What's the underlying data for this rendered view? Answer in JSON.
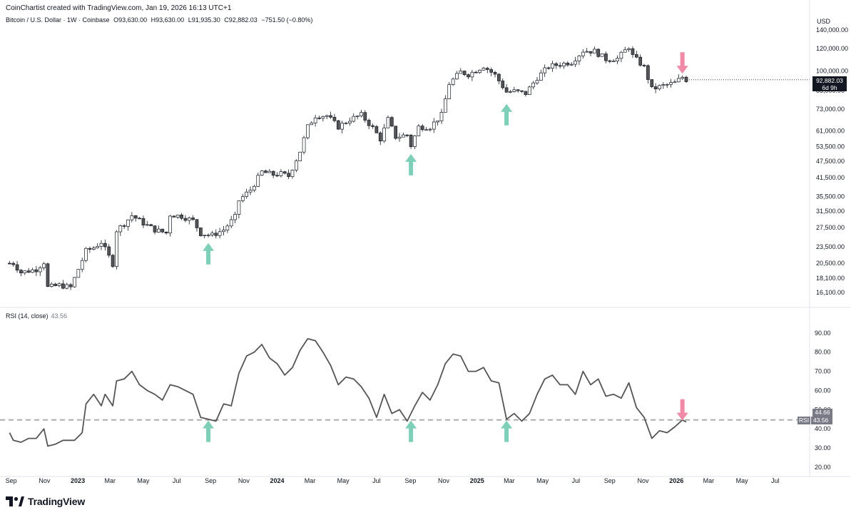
{
  "header": {
    "credit": "CoinChartist created with TradingView.com, Jan 19, 2026 16:13 UTC+1",
    "symbol": "Bitcoin / U.S. Dollar · 1W · Coinbase",
    "open": "O93,630.00",
    "high": "H93,630.00",
    "low": "L91,935.30",
    "close": "C92,882.03",
    "change": "−751.50 (−0.80%)"
  },
  "currency": "USD",
  "price_tag": {
    "price": "92,882.03",
    "countdown": "6d 9h"
  },
  "rsi_panel": {
    "label": "RSI (14, close)",
    "value": "43.56",
    "tag_upper": "44.66",
    "tag_name": "RSI",
    "tag_lower": "43.56"
  },
  "footer": {
    "brand": "TradingView"
  },
  "colors": {
    "up_arrow": "#7ecfb7",
    "down_arrow": "#f08aa6",
    "rsi_line": "#555555",
    "candle_down": "#555555",
    "candle_up": "#ffffff",
    "reference_line": "#9e9e9e"
  },
  "chart_data": [
    {
      "type": "candlestick",
      "title": "",
      "ylabel": "USD",
      "y_scale": "log",
      "ylim": [
        14500,
        145000
      ],
      "y_ticks": [
        {
          "value": 140000,
          "label": "140,000.00"
        },
        {
          "value": 120000,
          "label": "120,000.00"
        },
        {
          "value": 100000,
          "label": "100,000.00"
        },
        {
          "value": 85000,
          "label": "85,000.00"
        },
        {
          "value": 73000,
          "label": "73,000.00"
        },
        {
          "value": 61000,
          "label": "61,000.00"
        },
        {
          "value": 53500,
          "label": "53,500.00"
        },
        {
          "value": 47500,
          "label": "47,500.00"
        },
        {
          "value": 41500,
          "label": "41,500.00"
        },
        {
          "value": 35500,
          "label": "35,500.00"
        },
        {
          "value": 31500,
          "label": "31,500.00"
        },
        {
          "value": 27500,
          "label": "27,500.00"
        },
        {
          "value": 23500,
          "label": "23,500.00"
        },
        {
          "value": 20500,
          "label": "20,500.00"
        },
        {
          "value": 18100,
          "label": "18,100.00"
        },
        {
          "value": 16100,
          "label": "16,100.00"
        }
      ],
      "x_ticks": [
        "Sep",
        "Nov",
        "2023",
        "Mar",
        "May",
        "Jul",
        "Sep",
        "Nov",
        "2024",
        "Mar",
        "May",
        "Jul",
        "Sep",
        "Nov",
        "2025",
        "Mar",
        "May",
        "Jul",
        "Sep",
        "Nov",
        "2026",
        "Mar",
        "May",
        "Jul"
      ],
      "x_tick_bold": [
        false,
        false,
        true,
        false,
        false,
        false,
        false,
        false,
        true,
        false,
        false,
        false,
        false,
        false,
        true,
        false,
        false,
        false,
        false,
        false,
        true,
        false,
        false,
        false
      ],
      "close_path": [
        {
          "x": "2022-09-05",
          "y": 20500
        },
        {
          "x": "2022-09-19",
          "y": 19000
        },
        {
          "x": "2022-10-17",
          "y": 19500
        },
        {
          "x": "2022-10-31",
          "y": 20700
        },
        {
          "x": "2022-11-07",
          "y": 16800
        },
        {
          "x": "2022-11-28",
          "y": 17100
        },
        {
          "x": "2022-12-19",
          "y": 16800
        },
        {
          "x": "2023-01-16",
          "y": 22700
        },
        {
          "x": "2023-01-30",
          "y": 23300
        },
        {
          "x": "2023-02-13",
          "y": 24400
        },
        {
          "x": "2023-03-06",
          "y": 20400
        },
        {
          "x": "2023-03-13",
          "y": 26900
        },
        {
          "x": "2023-03-27",
          "y": 28400
        },
        {
          "x": "2023-04-10",
          "y": 30400
        },
        {
          "x": "2023-05-01",
          "y": 28500
        },
        {
          "x": "2023-05-22",
          "y": 27000
        },
        {
          "x": "2023-06-12",
          "y": 26300
        },
        {
          "x": "2023-06-19",
          "y": 30600
        },
        {
          "x": "2023-07-10",
          "y": 30200
        },
        {
          "x": "2023-07-31",
          "y": 29100
        },
        {
          "x": "2023-08-14",
          "y": 26200
        },
        {
          "x": "2023-09-04",
          "y": 25800
        },
        {
          "x": "2023-09-25",
          "y": 27000
        },
        {
          "x": "2023-10-16",
          "y": 30000
        },
        {
          "x": "2023-10-23",
          "y": 34400
        },
        {
          "x": "2023-11-13",
          "y": 37500
        },
        {
          "x": "2023-12-04",
          "y": 43500
        },
        {
          "x": "2023-12-25",
          "y": 42500
        },
        {
          "x": "2024-01-08",
          "y": 42800
        },
        {
          "x": "2024-01-22",
          "y": 42000
        },
        {
          "x": "2024-02-12",
          "y": 51600
        },
        {
          "x": "2024-02-26",
          "y": 63000
        },
        {
          "x": "2024-03-11",
          "y": 69000
        },
        {
          "x": "2024-04-01",
          "y": 69200
        },
        {
          "x": "2024-04-22",
          "y": 63000
        },
        {
          "x": "2024-05-13",
          "y": 67000
        },
        {
          "x": "2024-06-03",
          "y": 69500
        },
        {
          "x": "2024-06-24",
          "y": 62500
        },
        {
          "x": "2024-07-08",
          "y": 57000
        },
        {
          "x": "2024-07-22",
          "y": 67000
        },
        {
          "x": "2024-08-05",
          "y": 58000
        },
        {
          "x": "2024-08-26",
          "y": 59000
        },
        {
          "x": "2024-09-02",
          "y": 54000
        },
        {
          "x": "2024-09-16",
          "y": 63000
        },
        {
          "x": "2024-10-07",
          "y": 63000
        },
        {
          "x": "2024-10-28",
          "y": 69500
        },
        {
          "x": "2024-11-11",
          "y": 90000
        },
        {
          "x": "2024-12-02",
          "y": 99000
        },
        {
          "x": "2024-12-16",
          "y": 97000
        },
        {
          "x": "2025-01-13",
          "y": 104000
        },
        {
          "x": "2025-02-03",
          "y": 96500
        },
        {
          "x": "2025-02-24",
          "y": 84000
        },
        {
          "x": "2025-03-10",
          "y": 84500
        },
        {
          "x": "2025-03-31",
          "y": 83000
        },
        {
          "x": "2025-04-21",
          "y": 94500
        },
        {
          "x": "2025-05-12",
          "y": 103500
        },
        {
          "x": "2025-06-02",
          "y": 105500
        },
        {
          "x": "2025-06-23",
          "y": 107500
        },
        {
          "x": "2025-07-14",
          "y": 118000
        },
        {
          "x": "2025-08-04",
          "y": 117500
        },
        {
          "x": "2025-08-25",
          "y": 110000
        },
        {
          "x": "2025-09-15",
          "y": 110500
        },
        {
          "x": "2025-10-06",
          "y": 122000
        },
        {
          "x": "2025-10-13",
          "y": 113000
        },
        {
          "x": "2025-11-03",
          "y": 103000
        },
        {
          "x": "2025-11-17",
          "y": 86000
        },
        {
          "x": "2025-12-08",
          "y": 88500
        },
        {
          "x": "2025-12-29",
          "y": 90500
        },
        {
          "x": "2026-01-12",
          "y": 95000
        },
        {
          "x": "2026-01-19",
          "y": 92882
        }
      ],
      "last_price": 92882.03,
      "markers": [
        {
          "kind": "up",
          "date": "2023-08-28",
          "price": 24500
        },
        {
          "kind": "up",
          "date": "2024-09-02",
          "price": 51000
        },
        {
          "kind": "up",
          "date": "2025-02-24",
          "price": 77000
        },
        {
          "kind": "down",
          "date": "2026-01-12",
          "price": 100000
        }
      ]
    },
    {
      "type": "line",
      "title": "",
      "series": [
        {
          "name": "RSI (14, close)"
        }
      ],
      "ylim": [
        17,
        97
      ],
      "y_ticks": [
        {
          "value": 90,
          "label": "90.00"
        },
        {
          "value": 80,
          "label": "80.00"
        },
        {
          "value": 70,
          "label": "70.00"
        },
        {
          "value": 60,
          "label": "60.00"
        },
        {
          "value": 50,
          "label": "50.00"
        },
        {
          "value": 40,
          "label": "40.00"
        },
        {
          "value": 30,
          "label": "30.00"
        },
        {
          "value": 20,
          "label": "20.00"
        }
      ],
      "reference_line": 44.66,
      "points": [
        {
          "x": "2022-08-29",
          "y": 38
        },
        {
          "x": "2022-09-05",
          "y": 34
        },
        {
          "x": "2022-09-19",
          "y": 33
        },
        {
          "x": "2022-10-03",
          "y": 35
        },
        {
          "x": "2022-10-17",
          "y": 35
        },
        {
          "x": "2022-10-31",
          "y": 40
        },
        {
          "x": "2022-11-07",
          "y": 31
        },
        {
          "x": "2022-11-21",
          "y": 32
        },
        {
          "x": "2022-12-05",
          "y": 34
        },
        {
          "x": "2022-12-26",
          "y": 34
        },
        {
          "x": "2023-01-09",
          "y": 38
        },
        {
          "x": "2023-01-16",
          "y": 53
        },
        {
          "x": "2023-01-30",
          "y": 58
        },
        {
          "x": "2023-02-13",
          "y": 52
        },
        {
          "x": "2023-02-20",
          "y": 58
        },
        {
          "x": "2023-03-06",
          "y": 52
        },
        {
          "x": "2023-03-13",
          "y": 65
        },
        {
          "x": "2023-03-27",
          "y": 66
        },
        {
          "x": "2023-04-10",
          "y": 70
        },
        {
          "x": "2023-04-24",
          "y": 63
        },
        {
          "x": "2023-05-08",
          "y": 60
        },
        {
          "x": "2023-05-22",
          "y": 58
        },
        {
          "x": "2023-06-05",
          "y": 55
        },
        {
          "x": "2023-06-19",
          "y": 63
        },
        {
          "x": "2023-07-03",
          "y": 62
        },
        {
          "x": "2023-07-17",
          "y": 60
        },
        {
          "x": "2023-07-31",
          "y": 58
        },
        {
          "x": "2023-08-14",
          "y": 46
        },
        {
          "x": "2023-08-28",
          "y": 45
        },
        {
          "x": "2023-09-11",
          "y": 44
        },
        {
          "x": "2023-09-25",
          "y": 53
        },
        {
          "x": "2023-10-09",
          "y": 52
        },
        {
          "x": "2023-10-23",
          "y": 69
        },
        {
          "x": "2023-11-06",
          "y": 78
        },
        {
          "x": "2023-11-20",
          "y": 80
        },
        {
          "x": "2023-12-04",
          "y": 84
        },
        {
          "x": "2023-12-18",
          "y": 77
        },
        {
          "x": "2024-01-01",
          "y": 74
        },
        {
          "x": "2024-01-15",
          "y": 68
        },
        {
          "x": "2024-01-29",
          "y": 72
        },
        {
          "x": "2024-02-12",
          "y": 81
        },
        {
          "x": "2024-02-26",
          "y": 87
        },
        {
          "x": "2024-03-11",
          "y": 86
        },
        {
          "x": "2024-03-25",
          "y": 80
        },
        {
          "x": "2024-04-08",
          "y": 73
        },
        {
          "x": "2024-04-22",
          "y": 63
        },
        {
          "x": "2024-05-06",
          "y": 67
        },
        {
          "x": "2024-05-20",
          "y": 66
        },
        {
          "x": "2024-06-03",
          "y": 62
        },
        {
          "x": "2024-06-17",
          "y": 56
        },
        {
          "x": "2024-07-01",
          "y": 46
        },
        {
          "x": "2024-07-15",
          "y": 58
        },
        {
          "x": "2024-07-29",
          "y": 48
        },
        {
          "x": "2024-08-12",
          "y": 50
        },
        {
          "x": "2024-08-26",
          "y": 44
        },
        {
          "x": "2024-09-09",
          "y": 52
        },
        {
          "x": "2024-09-23",
          "y": 59
        },
        {
          "x": "2024-10-07",
          "y": 55
        },
        {
          "x": "2024-10-21",
          "y": 63
        },
        {
          "x": "2024-11-04",
          "y": 74
        },
        {
          "x": "2024-11-18",
          "y": 79
        },
        {
          "x": "2024-12-02",
          "y": 78
        },
        {
          "x": "2024-12-16",
          "y": 70
        },
        {
          "x": "2024-12-30",
          "y": 70
        },
        {
          "x": "2025-01-13",
          "y": 72
        },
        {
          "x": "2025-01-27",
          "y": 65
        },
        {
          "x": "2025-02-10",
          "y": 64
        },
        {
          "x": "2025-02-24",
          "y": 45
        },
        {
          "x": "2025-03-10",
          "y": 48
        },
        {
          "x": "2025-03-24",
          "y": 44
        },
        {
          "x": "2025-04-07",
          "y": 48
        },
        {
          "x": "2025-04-21",
          "y": 58
        },
        {
          "x": "2025-05-05",
          "y": 66
        },
        {
          "x": "2025-05-19",
          "y": 68
        },
        {
          "x": "2025-06-02",
          "y": 63
        },
        {
          "x": "2025-06-16",
          "y": 63
        },
        {
          "x": "2025-06-30",
          "y": 58
        },
        {
          "x": "2025-07-14",
          "y": 70
        },
        {
          "x": "2025-07-28",
          "y": 63
        },
        {
          "x": "2025-08-11",
          "y": 66
        },
        {
          "x": "2025-08-25",
          "y": 57
        },
        {
          "x": "2025-09-08",
          "y": 58
        },
        {
          "x": "2025-09-22",
          "y": 56
        },
        {
          "x": "2025-10-06",
          "y": 64
        },
        {
          "x": "2025-10-20",
          "y": 51
        },
        {
          "x": "2025-11-03",
          "y": 46
        },
        {
          "x": "2025-11-17",
          "y": 35
        },
        {
          "x": "2025-12-01",
          "y": 39
        },
        {
          "x": "2025-12-15",
          "y": 38
        },
        {
          "x": "2025-12-29",
          "y": 41
        },
        {
          "x": "2026-01-12",
          "y": 44.6
        },
        {
          "x": "2026-01-19",
          "y": 43.56
        }
      ],
      "markers": [
        {
          "kind": "up",
          "date": "2023-08-28"
        },
        {
          "kind": "up",
          "date": "2024-09-02"
        },
        {
          "kind": "up",
          "date": "2025-02-24"
        },
        {
          "kind": "down",
          "date": "2026-01-12"
        }
      ]
    }
  ]
}
